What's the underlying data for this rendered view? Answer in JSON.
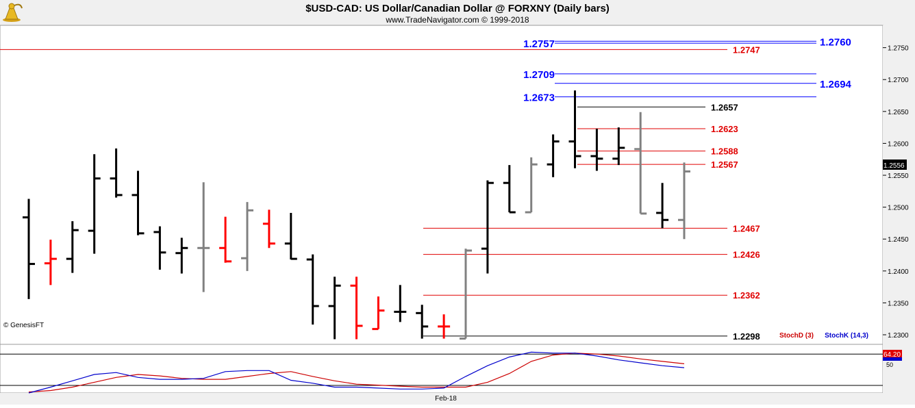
{
  "header": {
    "title": "$USD-CAD:  US Dollar/Canadian Dollar @ FORXNY  (Daily bars)",
    "subtitle": "www.TradeNavigator.com © 1999-2018",
    "logo_icon": "trumpet-logo-icon",
    "copyright": "© GenesisFT"
  },
  "colors": {
    "background": "#ffffff",
    "header_bg": "#f0f0f0",
    "axis_bg": "#f0f0f0",
    "bar_black": "#000000",
    "bar_gray": "#808080",
    "bar_red": "#ff0000",
    "level_red": "#e00000",
    "level_blue": "#0000ff",
    "level_black": "#000000",
    "stoch_d": "#cc0000",
    "stoch_k": "#0000cc"
  },
  "chart_data": {
    "type": "ohlc",
    "title": "$USD-CAD:  US Dollar/Canadian Dollar @ FORXNY  (Daily bars)",
    "ylim": [
      1.2285,
      1.2785
    ],
    "y_ticks": [
      "1.2750",
      "1.2700",
      "1.2650",
      "1.2600",
      "1.2550",
      "1.2500",
      "1.2450",
      "1.2400",
      "1.2350",
      "1.2300"
    ],
    "last_price": "1.2556",
    "x_label": "Feb-18",
    "bars": [
      {
        "o": 1.2484,
        "h": 1.2513,
        "l": 1.2356,
        "c": 1.2411,
        "color": "black"
      },
      {
        "o": 1.2412,
        "h": 1.2449,
        "l": 1.2378,
        "c": 1.2419,
        "color": "red"
      },
      {
        "o": 1.2419,
        "h": 1.2478,
        "l": 1.2397,
        "c": 1.2464,
        "color": "black"
      },
      {
        "o": 1.2463,
        "h": 1.2583,
        "l": 1.2427,
        "c": 1.2545,
        "color": "black"
      },
      {
        "o": 1.2545,
        "h": 1.2592,
        "l": 1.2515,
        "c": 1.2519,
        "color": "black"
      },
      {
        "o": 1.2519,
        "h": 1.2557,
        "l": 1.2456,
        "c": 1.2459,
        "color": "black"
      },
      {
        "o": 1.2461,
        "h": 1.247,
        "l": 1.2402,
        "c": 1.2429,
        "color": "black"
      },
      {
        "o": 1.2428,
        "h": 1.2452,
        "l": 1.2396,
        "c": 1.2436,
        "color": "black"
      },
      {
        "o": 1.2436,
        "h": 1.2539,
        "l": 1.2367,
        "c": 1.2436,
        "color": "gray"
      },
      {
        "o": 1.2436,
        "h": 1.2485,
        "l": 1.2413,
        "c": 1.2415,
        "color": "red"
      },
      {
        "o": 1.242,
        "h": 1.2508,
        "l": 1.24,
        "c": 1.2495,
        "color": "gray"
      },
      {
        "o": 1.2474,
        "h": 1.2496,
        "l": 1.2436,
        "c": 1.2443,
        "color": "red"
      },
      {
        "o": 1.2443,
        "h": 1.2491,
        "l": 1.2418,
        "c": 1.2419,
        "color": "black"
      },
      {
        "o": 1.2418,
        "h": 1.2426,
        "l": 1.2316,
        "c": 1.2345,
        "color": "black"
      },
      {
        "o": 1.2345,
        "h": 1.2391,
        "l": 1.2293,
        "c": 1.2377,
        "color": "black"
      },
      {
        "o": 1.2377,
        "h": 1.2391,
        "l": 1.2293,
        "c": 1.2314,
        "color": "red"
      },
      {
        "o": 1.2309,
        "h": 1.236,
        "l": 1.2309,
        "c": 1.2338,
        "color": "red"
      },
      {
        "o": 1.2336,
        "h": 1.2378,
        "l": 1.232,
        "c": 1.2336,
        "color": "black"
      },
      {
        "o": 1.2334,
        "h": 1.2347,
        "l": 1.2294,
        "c": 1.2313,
        "color": "black"
      },
      {
        "o": 1.2313,
        "h": 1.2332,
        "l": 1.2294,
        "c": 1.2313,
        "color": "red"
      },
      {
        "o": 1.2294,
        "h": 1.2435,
        "l": 1.2294,
        "c": 1.2432,
        "color": "gray"
      },
      {
        "o": 1.2435,
        "h": 1.2542,
        "l": 1.2396,
        "c": 1.2538,
        "color": "black"
      },
      {
        "o": 1.2538,
        "h": 1.2566,
        "l": 1.2492,
        "c": 1.2492,
        "color": "black"
      },
      {
        "o": 1.2492,
        "h": 1.2578,
        "l": 1.2492,
        "c": 1.2567,
        "color": "gray"
      },
      {
        "o": 1.2567,
        "h": 1.2614,
        "l": 1.2547,
        "c": 1.2603,
        "color": "black"
      },
      {
        "o": 1.2603,
        "h": 1.2683,
        "l": 1.2561,
        "c": 1.258,
        "color": "black"
      },
      {
        "o": 1.258,
        "h": 1.2623,
        "l": 1.2557,
        "c": 1.2576,
        "color": "black"
      },
      {
        "o": 1.2576,
        "h": 1.2625,
        "l": 1.2566,
        "c": 1.2593,
        "color": "black"
      },
      {
        "o": 1.2591,
        "h": 1.2649,
        "l": 1.249,
        "c": 1.249,
        "color": "gray"
      },
      {
        "o": 1.2491,
        "h": 1.2538,
        "l": 1.2467,
        "c": 1.248,
        "color": "black"
      },
      {
        "o": 1.248,
        "h": 1.257,
        "l": 1.245,
        "c": 1.2556,
        "color": "gray"
      }
    ],
    "levels": [
      {
        "label": "1.2757",
        "value": 1.2757,
        "color": "blue",
        "side": "left"
      },
      {
        "label": "1.2760",
        "value": 1.276,
        "color": "blue",
        "side": "right"
      },
      {
        "label": "1.2747",
        "value": 1.2747,
        "color": "red",
        "side": "mid"
      },
      {
        "label": "1.2709",
        "value": 1.2709,
        "color": "blue",
        "side": "left"
      },
      {
        "label": "1.2694",
        "value": 1.2694,
        "color": "blue",
        "side": "right"
      },
      {
        "label": "1.2673",
        "value": 1.2673,
        "color": "blue",
        "side": "left"
      },
      {
        "label": "1.2657",
        "value": 1.2657,
        "color": "black",
        "side": "mid"
      },
      {
        "label": "1.2623",
        "value": 1.2623,
        "color": "red",
        "side": "mid"
      },
      {
        "label": "1.2588",
        "value": 1.2588,
        "color": "red",
        "side": "mid"
      },
      {
        "label": "1.2567",
        "value": 1.2567,
        "color": "red",
        "side": "mid"
      },
      {
        "label": "1.2467",
        "value": 1.2467,
        "color": "red",
        "side": "mid"
      },
      {
        "label": "1.2426",
        "value": 1.2426,
        "color": "red",
        "side": "mid"
      },
      {
        "label": "1.2362",
        "value": 1.2362,
        "color": "red",
        "side": "mid"
      },
      {
        "label": "1.2298",
        "value": 1.2298,
        "color": "black",
        "side": "mid"
      }
    ],
    "stochastic": {
      "ylim": [
        0,
        100
      ],
      "reference_level": 80,
      "y_tick": "50",
      "badge_value": "64.20",
      "legend_d": "StochD (3)",
      "legend_k": "StochK (14,3)",
      "d_values": [
        2,
        5,
        12,
        22,
        32,
        38,
        35,
        30,
        28,
        28,
        34,
        40,
        44,
        34,
        25,
        18,
        16,
        14,
        12,
        12,
        12,
        22,
        40,
        65,
        78,
        82,
        80,
        76,
        70,
        65,
        60
      ],
      "k_values": [
        0,
        12,
        25,
        38,
        42,
        32,
        28,
        28,
        30,
        44,
        46,
        46,
        26,
        20,
        12,
        12,
        10,
        8,
        8,
        10,
        34,
        56,
        74,
        84,
        82,
        82,
        76,
        68,
        62,
        56,
        52
      ]
    }
  }
}
